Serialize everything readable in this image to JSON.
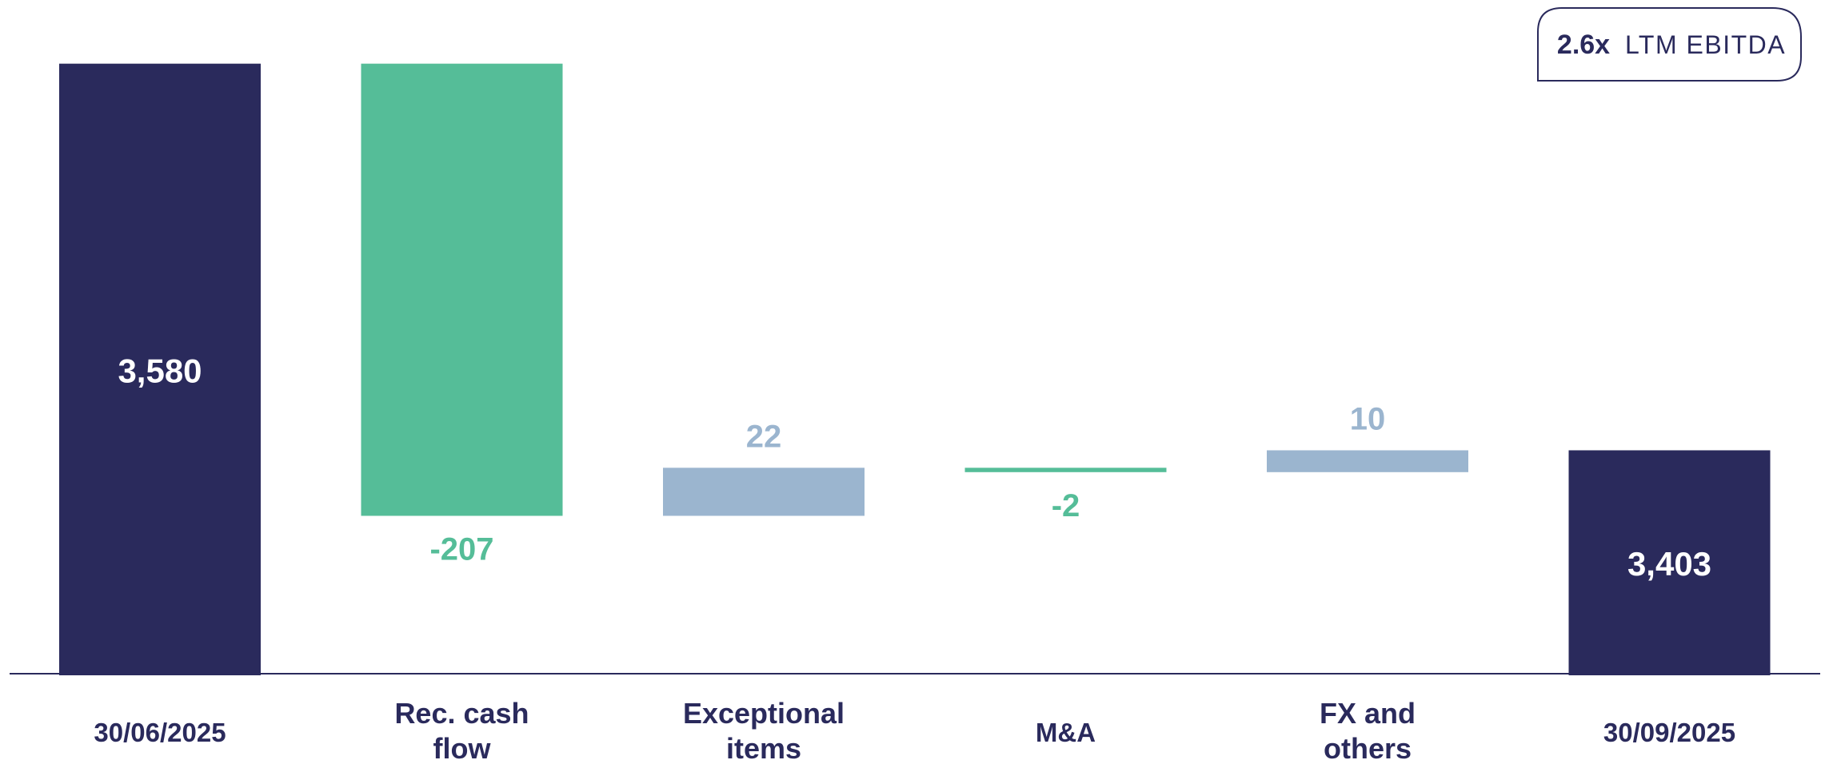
{
  "chart_data": {
    "type": "bar",
    "subtype": "waterfall",
    "categories": [
      "30/06/2025",
      "Rec. cash flow",
      "Exceptional items",
      "M&A",
      "FX and others",
      "30/09/2025"
    ],
    "category_lines": [
      [
        "30/06/2025"
      ],
      [
        "Rec. cash",
        "flow"
      ],
      [
        "Exceptional",
        "items"
      ],
      [
        "M&A"
      ],
      [
        "FX and",
        "others"
      ],
      [
        "30/09/2025"
      ]
    ],
    "values": [
      3580,
      -207,
      22,
      -2,
      10,
      3403
    ],
    "value_labels": [
      "3,580",
      "-207",
      "22",
      "-2",
      "10",
      "3,403"
    ],
    "kinds": [
      "total",
      "delta",
      "delta",
      "delta",
      "delta",
      "total"
    ],
    "visible_range": [
      3300,
      3600
    ],
    "callout": {
      "bold": "2.6x",
      "text": "LTM EBITDA"
    },
    "colors": {
      "total": "#2a2a5c",
      "decrease": "#55bd98",
      "increase": "#9bb5cf",
      "baseline": "#2a2a5c",
      "total_label": "#ffffff"
    }
  }
}
